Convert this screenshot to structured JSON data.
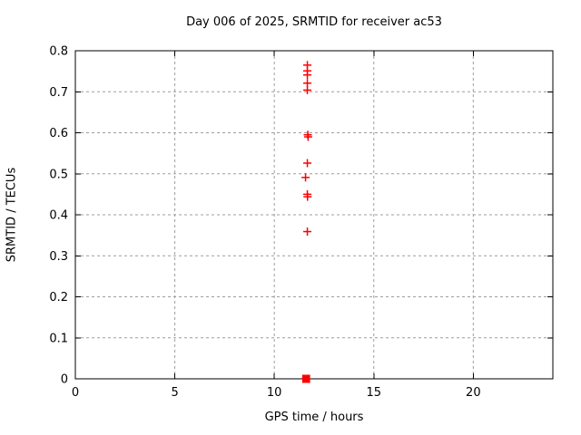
{
  "chart_data": {
    "type": "scatter",
    "title": "Day 006 of 2025, SRMTID for receiver ac53",
    "xlabel": "GPS time / hours",
    "ylabel": "SRMTID / TECUs",
    "xlim": [
      0,
      24
    ],
    "ylim": [
      0,
      0.8
    ],
    "xticks": [
      0,
      5,
      10,
      15,
      20
    ],
    "xtick_labels": [
      "0",
      "5",
      "10",
      "15",
      "20"
    ],
    "yticks": [
      0,
      0.1,
      0.2,
      0.3,
      0.4,
      0.5,
      0.6,
      0.7,
      0.8
    ],
    "ytick_labels": [
      "0",
      "0.1",
      "0.2",
      "0.3",
      "0.4",
      "0.5",
      "0.6",
      "0.7",
      "0.8"
    ],
    "grid": true,
    "legend": "none",
    "marker": "plus",
    "marker_color": "#ff0000",
    "grid_color": "#9e9e9e",
    "axis_color": "#000000",
    "background": "#ffffff",
    "points": [
      {
        "x": 11.66,
        "y": 0.765
      },
      {
        "x": 11.66,
        "y": 0.751
      },
      {
        "x": 11.66,
        "y": 0.741
      },
      {
        "x": 11.66,
        "y": 0.721
      },
      {
        "x": 11.66,
        "y": 0.704
      },
      {
        "x": 11.68,
        "y": 0.595
      },
      {
        "x": 11.7,
        "y": 0.59
      },
      {
        "x": 11.66,
        "y": 0.526
      },
      {
        "x": 11.57,
        "y": 0.491
      },
      {
        "x": 11.66,
        "y": 0.45
      },
      {
        "x": 11.67,
        "y": 0.444
      },
      {
        "x": 11.66,
        "y": 0.359
      }
    ],
    "zero_cluster": {
      "y": 0,
      "x_min": 11.4,
      "x_max": 11.8
    }
  }
}
